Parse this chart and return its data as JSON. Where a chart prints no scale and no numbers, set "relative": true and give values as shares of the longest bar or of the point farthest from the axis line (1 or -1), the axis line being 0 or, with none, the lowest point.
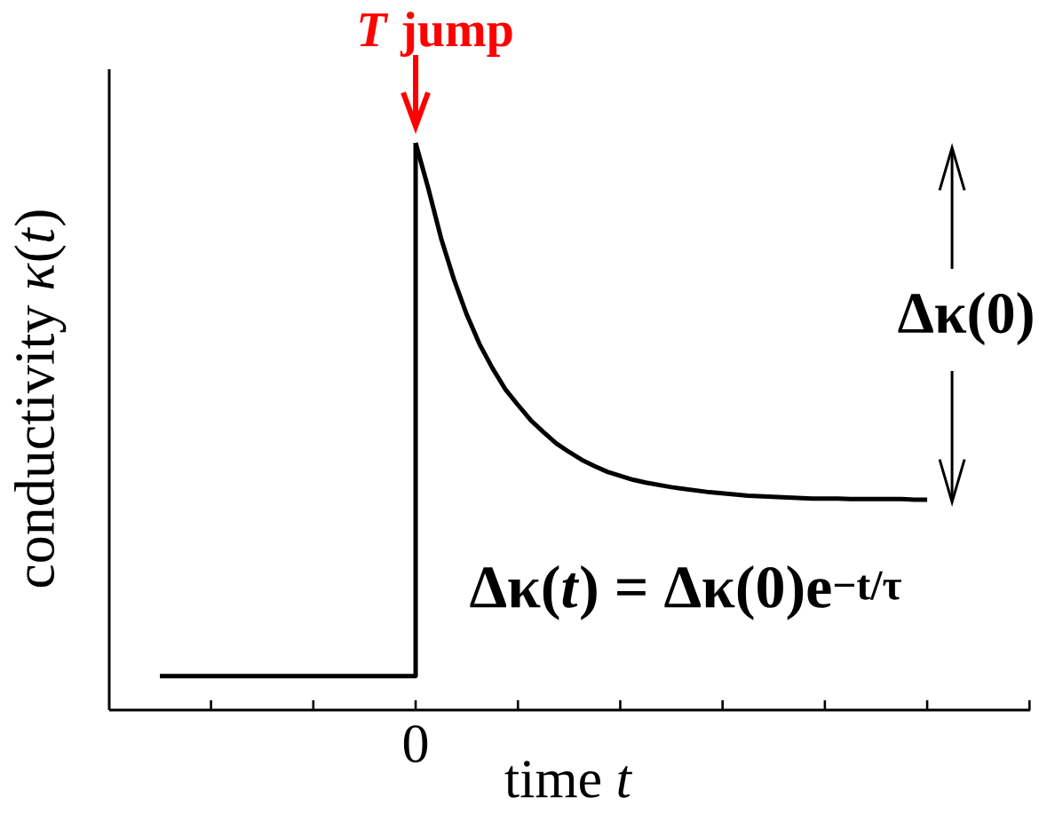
{
  "chart_data": {
    "type": "line",
    "xlabel": "time *t*",
    "ylabel": "conductivity *κ*(*t*)",
    "relative": true,
    "categories": [
      null,
      null,
      null,
      null,
      null,
      null,
      null,
      null,
      null,
      null,
      null,
      null,
      null,
      null,
      null,
      null,
      null,
      null,
      null,
      null,
      null,
      null,
      null,
      null,
      null,
      null,
      null,
      null,
      null,
      null,
      null,
      null,
      null,
      null,
      null,
      null,
      null,
      null,
      null,
      null,
      null,
      null,
      null,
      null,
      null,
      null,
      null,
      null,
      null,
      null,
      null,
      null,
      null,
      null,
      null,
      null,
      null,
      null,
      null,
      null,
      null
    ],
    "series": [
      {
        "type": "step",
        "color": "#000000",
        "values": [
          0.06,
          0.06,
          0.06,
          0.06,
          0.06,
          0.06,
          0.06,
          0.06,
          0.06,
          0.06,
          0.06,
          0.06,
          0.06,
          0.06,
          0.06,
          0.06,
          0.06,
          0.06,
          0.06,
          0.06,
          1,
          null,
          null,
          null,
          null,
          null,
          null,
          null,
          null,
          null,
          null,
          null,
          null,
          null,
          null,
          null,
          null,
          null,
          null,
          null,
          null,
          null,
          null,
          null,
          null,
          null,
          null,
          null,
          null,
          null,
          null,
          null,
          null,
          null,
          null,
          null,
          null,
          null,
          null,
          null,
          null
        ]
      },
      {
        "color": "#000000",
        "values": [
          null,
          null,
          null,
          null,
          null,
          null,
          null,
          null,
          null,
          null,
          null,
          null,
          null,
          null,
          null,
          null,
          null,
          null,
          null,
          null,
          1,
          0.919,
          0.831,
          0.759,
          0.697,
          0.645,
          0.603,
          0.566,
          0.538,
          0.511,
          0.49,
          0.47,
          0.455,
          0.441,
          0.43,
          0.42,
          0.413,
          0.406,
          0.401,
          0.397,
          0.393,
          0.39,
          0.387,
          0.384,
          0.382,
          0.38,
          0.378,
          0.377,
          0.376,
          0.375,
          0.374,
          0.373,
          0.373,
          0.373,
          0.372,
          0.372,
          0.372,
          0.372,
          0.372,
          0.371,
          0.371
        ]
      }
    ],
    "annotations": [
      "*T* jump",
      "Δκ(0)",
      "0",
      "Δκ(*t*) = Δκ(0)e$^{−t/τ}$"
    ]
  }
}
